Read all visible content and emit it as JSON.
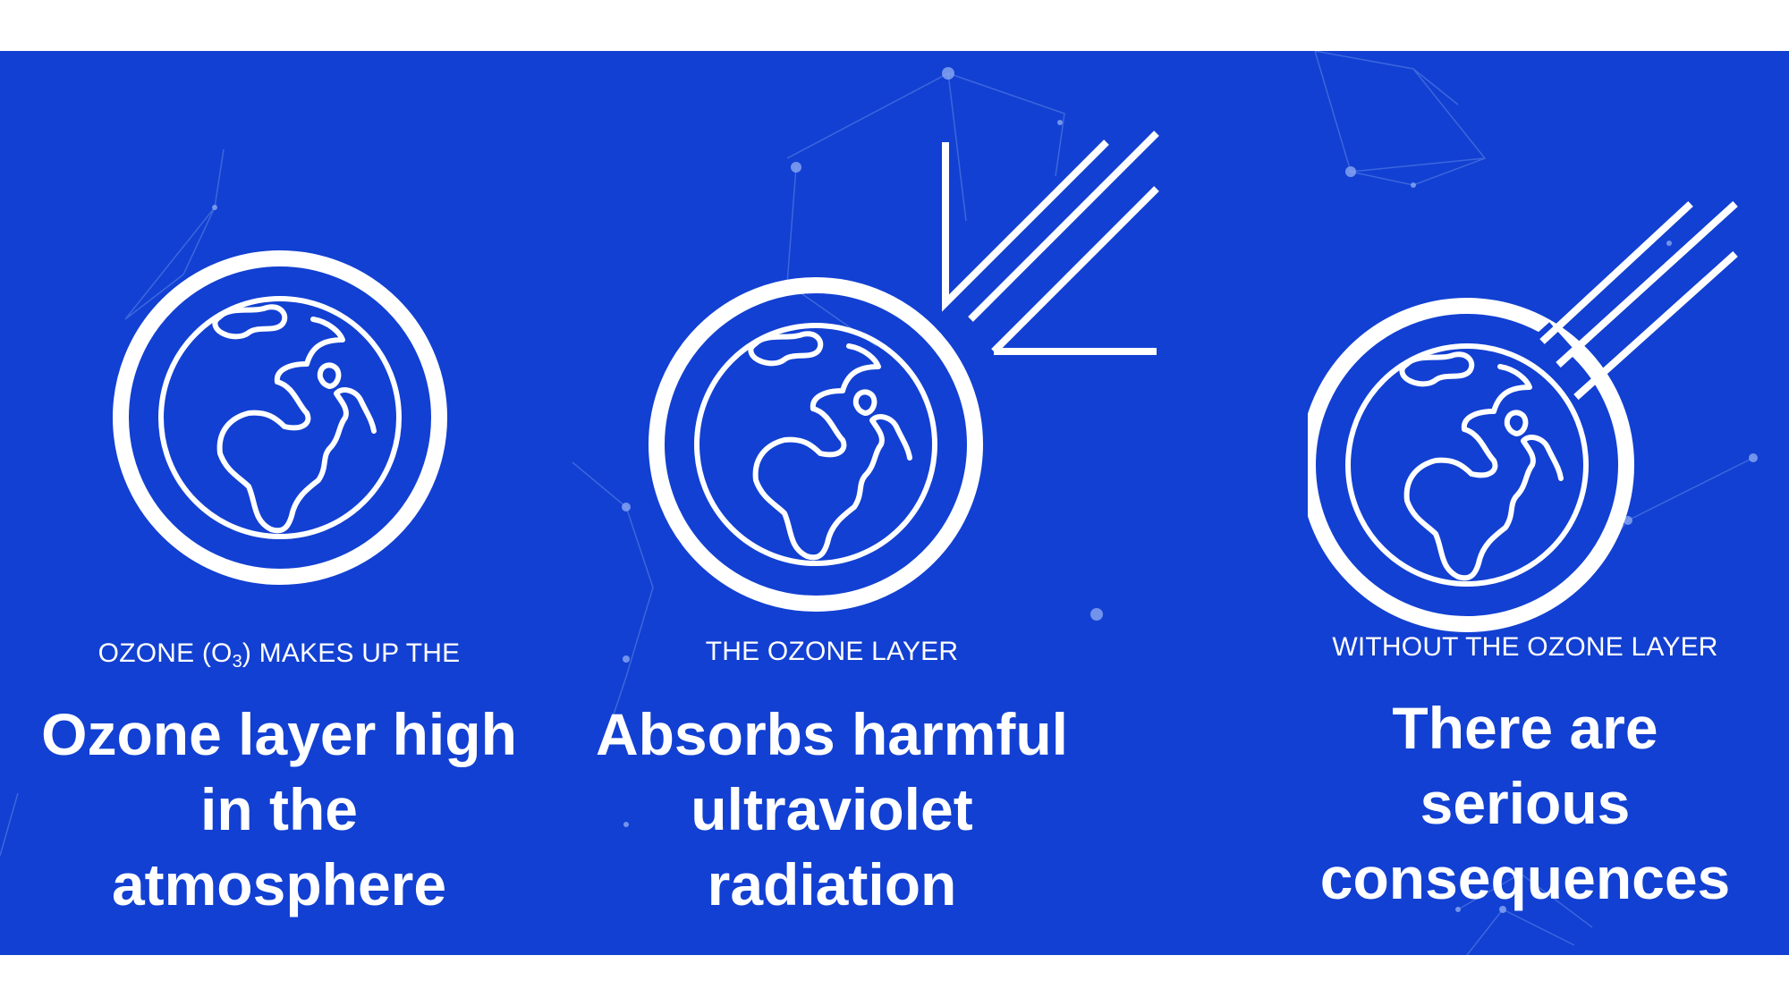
{
  "colors": {
    "background": "#1240d2",
    "foreground": "#ffffff",
    "page": "#ffffff"
  },
  "panels": [
    {
      "icon": "earth-with-ozone-ring-icon",
      "caption_pre": "OZONE (O",
      "caption_sub": "3",
      "caption_post": ") MAKES UP THE",
      "headline_lines": [
        "Ozone layer high",
        "in the",
        "atmosphere"
      ]
    },
    {
      "icon": "earth-reflecting-uv-rays-icon",
      "caption": "THE OZONE LAYER",
      "headline_lines": [
        "Absorbs harmful",
        "ultraviolet",
        "radiation"
      ]
    },
    {
      "icon": "earth-hit-by-uv-rays-icon",
      "caption": "WITHOUT THE OZONE LAYER",
      "headline_lines": [
        "There are",
        "serious",
        "consequences"
      ]
    }
  ]
}
